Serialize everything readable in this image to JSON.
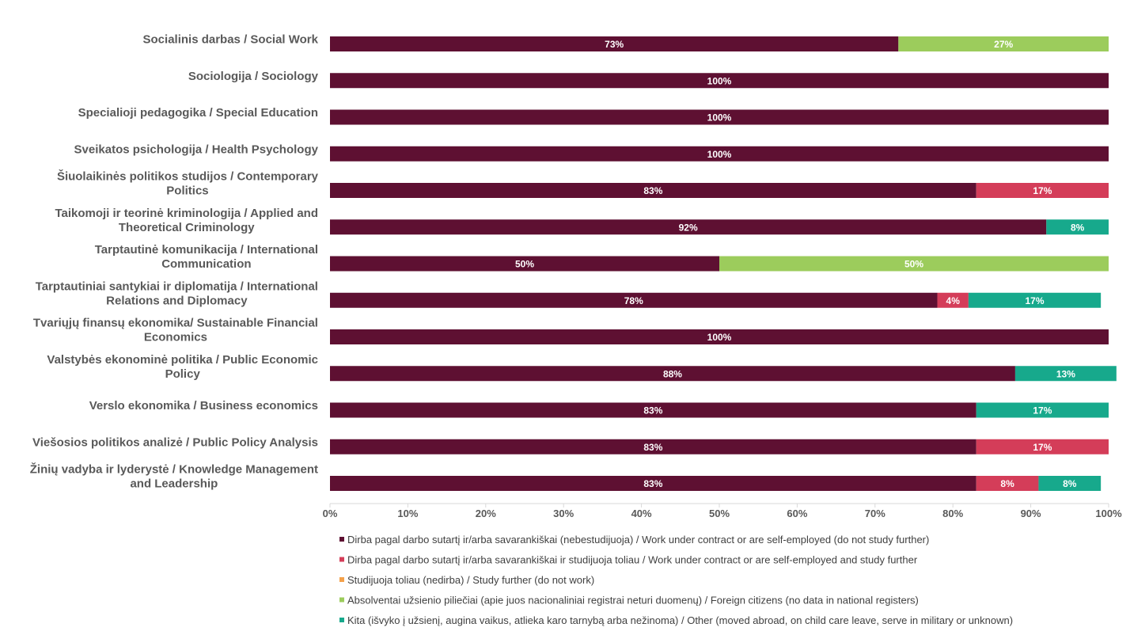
{
  "chart_data": {
    "type": "bar",
    "orientation": "horizontal",
    "stacked": "percent",
    "categories": [
      [
        "Socialinis darbas / Social Work"
      ],
      [
        "Sociologija / Sociology"
      ],
      [
        "Specialioji pedagogika / Special Education"
      ],
      [
        "Sveikatos psichologija / Health Psychology"
      ],
      [
        "Šiuolaikinės politikos studijos / Contemporary",
        "Politics"
      ],
      [
        "Taikomoji ir teorinė kriminologija / Applied and",
        "Theoretical Criminology"
      ],
      [
        "Tarptautinė komunikacija / International",
        "Communication"
      ],
      [
        "Tarptautiniai santykiai ir diplomatija / International",
        "Relations and Diplomacy"
      ],
      [
        "Tvariųjų finansų ekonomika/ Sustainable Financial",
        "Economics"
      ],
      [
        "Valstybės ekonominė politika / Public Economic",
        "Policy"
      ],
      [
        "Verslo ekonomika / Business economics"
      ],
      [
        "Viešosios politikos analizė / Public Policy Analysis"
      ],
      [
        "Žinių vadyba ir lyderystė / Knowledge Management",
        "and Leadership"
      ]
    ],
    "series": [
      {
        "name": "Dirba pagal darbo sutartį ir/arba savarankiškai (nebestudijuoja) / Work under contract or are self-employed (do not study further)",
        "color": "#5e1032",
        "values": [
          73,
          100,
          100,
          100,
          83,
          92,
          50,
          78,
          100,
          88,
          83,
          83,
          83
        ]
      },
      {
        "name": "Dirba pagal darbo sutartį ir/arba savarankiškai  ir studijuoja toliau / Work under contract or are self-employed and study further",
        "color": "#d43d59",
        "values": [
          0,
          0,
          0,
          0,
          17,
          0,
          0,
          4,
          0,
          0,
          0,
          17,
          8
        ]
      },
      {
        "name": "Studijuoja toliau (nedirba) / Study further (do not work)",
        "color": "#f4a14a",
        "values": [
          0,
          0,
          0,
          0,
          0,
          0,
          0,
          0,
          0,
          0,
          0,
          0,
          0
        ]
      },
      {
        "name": "Absolventai užsienio piliečiai (apie juos nacionaliniai registrai neturi duomenų) / Foreign citizens (no data in national registers)",
        "color": "#9ccc5c",
        "values": [
          27,
          0,
          0,
          0,
          0,
          0,
          50,
          0,
          0,
          0,
          0,
          0,
          0
        ]
      },
      {
        "name": "Kita (išvyko į užsienį, augina vaikus, atlieka karo tarnybą arba nežinoma) / Other (moved abroad, on child care leave, serve in military or unknown)",
        "color": "#17a98c",
        "values": [
          0,
          0,
          0,
          0,
          0,
          8,
          0,
          17,
          0,
          13,
          17,
          0,
          8
        ]
      }
    ],
    "xlim": [
      0,
      100
    ],
    "xticks": [
      "0%",
      "10%",
      "20%",
      "30%",
      "40%",
      "50%",
      "60%",
      "70%",
      "80%",
      "90%",
      "100%"
    ],
    "grid": false,
    "legend_position": "bottom",
    "title": "",
    "xlabel": "",
    "ylabel": ""
  }
}
